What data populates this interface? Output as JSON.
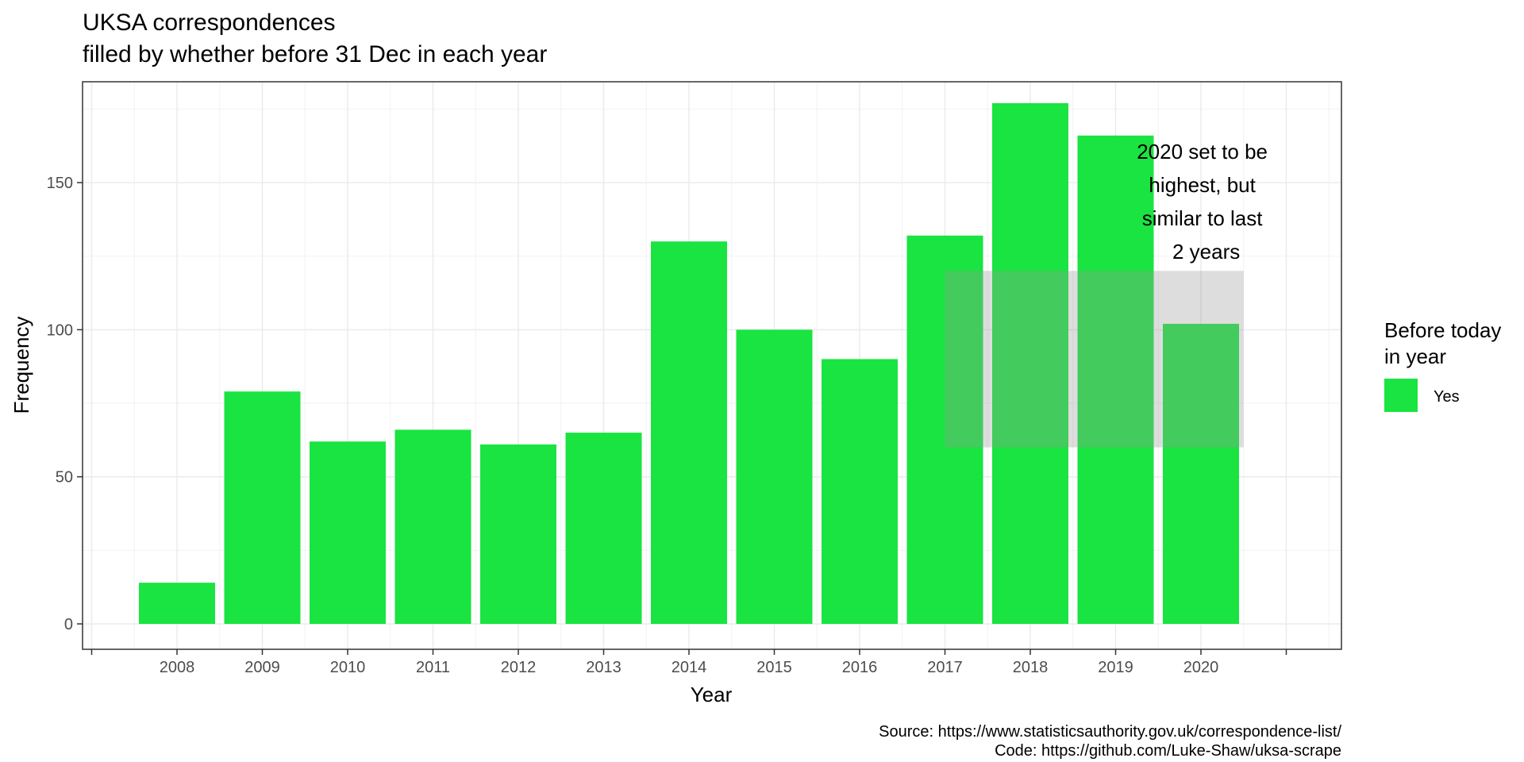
{
  "chart_data": {
    "type": "bar",
    "title": "UKSA correspondences",
    "subtitle": "filled by whether before 31 Dec in each year",
    "xlabel": "Year",
    "ylabel": "Frequency",
    "categories": [
      "2008",
      "2009",
      "2010",
      "2011",
      "2012",
      "2013",
      "2014",
      "2015",
      "2016",
      "2017",
      "2018",
      "2019",
      "2020"
    ],
    "series": [
      {
        "name": "Yes",
        "values": [
          14,
          79,
          62,
          66,
          61,
          65,
          130,
          100,
          90,
          132,
          177,
          166,
          102
        ],
        "color": "#1AE441"
      }
    ],
    "ylim": [
      0,
      185
    ],
    "yticks": [
      0,
      50,
      100,
      150
    ],
    "grid": true,
    "legend": {
      "title_lines": [
        "Before today",
        "in year"
      ],
      "placement": "right",
      "entries": [
        "Yes"
      ]
    },
    "annotation": {
      "text_lines": [
        "2020 set to be",
        "highest, but",
        "similar to last",
        "2 years"
      ],
      "highlight_x_range": [
        "2017",
        "2020.5"
      ],
      "highlight_y_range": [
        60,
        120
      ],
      "highlight_color": "#999999"
    },
    "caption_lines": [
      "Source: https://www.statisticsauthority.gov.uk/correspondence-list/",
      "Code: https://github.com/Luke-Shaw/uksa-scrape"
    ]
  }
}
